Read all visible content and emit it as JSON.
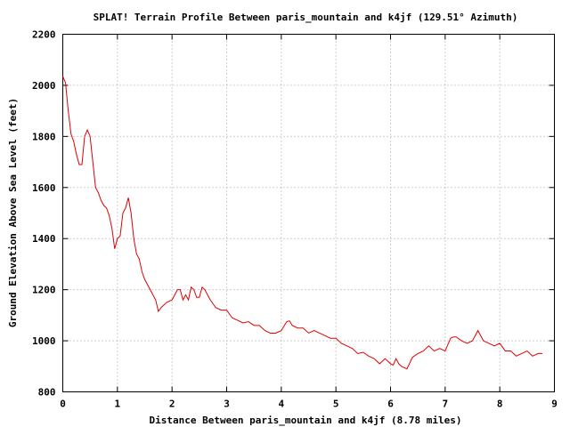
{
  "chart_data": {
    "type": "line",
    "title": "SPLAT! Terrain Profile Between paris_mountain and k4jf (129.51° Azimuth)",
    "xlabel": "Distance Between paris_mountain and k4jf (8.78 miles)",
    "ylabel": "Ground Elevation Above Sea Level (feet)",
    "xlim": [
      0,
      9
    ],
    "ylim": [
      800,
      2200
    ],
    "xticks": [
      "0",
      "1",
      "2",
      "3",
      "4",
      "5",
      "6",
      "7",
      "8",
      "9"
    ],
    "yticks": [
      "800",
      "1000",
      "1200",
      "1400",
      "1600",
      "1800",
      "2000",
      "2200"
    ],
    "grid": true,
    "series_color": "#e00000",
    "x": [
      0,
      0.05,
      0.1,
      0.15,
      0.2,
      0.25,
      0.3,
      0.35,
      0.4,
      0.45,
      0.5,
      0.55,
      0.6,
      0.65,
      0.7,
      0.75,
      0.8,
      0.85,
      0.9,
      0.95,
      1.0,
      1.05,
      1.1,
      1.15,
      1.2,
      1.25,
      1.3,
      1.35,
      1.4,
      1.45,
      1.5,
      1.6,
      1.7,
      1.75,
      1.8,
      1.9,
      2.0,
      2.05,
      2.1,
      2.15,
      2.2,
      2.25,
      2.3,
      2.35,
      2.4,
      2.45,
      2.5,
      2.55,
      2.6,
      2.7,
      2.8,
      2.9,
      3.0,
      3.1,
      3.2,
      3.3,
      3.4,
      3.5,
      3.6,
      3.7,
      3.8,
      3.9,
      4.0,
      4.1,
      4.15,
      4.2,
      4.3,
      4.4,
      4.5,
      4.6,
      4.7,
      4.8,
      4.9,
      5.0,
      5.1,
      5.2,
      5.3,
      5.4,
      5.5,
      5.6,
      5.7,
      5.8,
      5.9,
      6.0,
      6.05,
      6.1,
      6.15,
      6.2,
      6.3,
      6.4,
      6.5,
      6.6,
      6.7,
      6.8,
      6.9,
      7.0,
      7.1,
      7.15,
      7.2,
      7.3,
      7.4,
      7.5,
      7.6,
      7.7,
      7.8,
      7.9,
      8.0,
      8.1,
      8.2,
      8.3,
      8.4,
      8.5,
      8.6,
      8.7,
      8.78
    ],
    "values": [
      2035,
      2010,
      1900,
      1810,
      1780,
      1730,
      1690,
      1690,
      1800,
      1825,
      1800,
      1700,
      1600,
      1580,
      1550,
      1530,
      1520,
      1490,
      1440,
      1360,
      1400,
      1410,
      1500,
      1520,
      1560,
      1500,
      1400,
      1340,
      1320,
      1270,
      1240,
      1200,
      1160,
      1115,
      1130,
      1150,
      1160,
      1180,
      1200,
      1200,
      1160,
      1180,
      1160,
      1210,
      1200,
      1170,
      1170,
      1210,
      1200,
      1160,
      1130,
      1120,
      1120,
      1090,
      1080,
      1070,
      1075,
      1060,
      1060,
      1040,
      1030,
      1030,
      1040,
      1075,
      1078,
      1060,
      1050,
      1050,
      1030,
      1040,
      1030,
      1020,
      1010,
      1010,
      990,
      980,
      970,
      950,
      955,
      940,
      930,
      910,
      930,
      910,
      905,
      930,
      910,
      900,
      890,
      935,
      950,
      960,
      980,
      960,
      970,
      960,
      1010,
      1015,
      1015,
      1000,
      990,
      1000,
      1040,
      1000,
      990,
      980,
      990,
      960,
      960,
      940,
      950,
      960,
      940,
      950,
      950
    ]
  }
}
